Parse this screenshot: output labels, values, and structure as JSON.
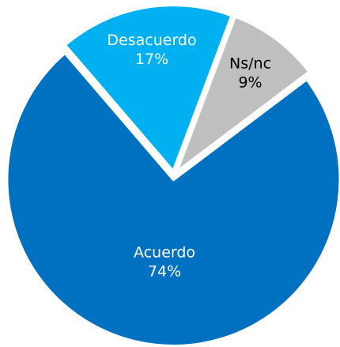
{
  "chart_data": {
    "type": "pie",
    "categories": [
      "Acuerdo",
      "Desacuerdo",
      "Ns/nc"
    ],
    "values": [
      74,
      17,
      9
    ],
    "value_labels": [
      "74%",
      "17%",
      "9%"
    ],
    "colors": [
      "#0070c0",
      "#00b0f0",
      "#bfbfbf"
    ],
    "label_colors": [
      "#ffffff",
      "#ffffff",
      "#000000"
    ]
  }
}
